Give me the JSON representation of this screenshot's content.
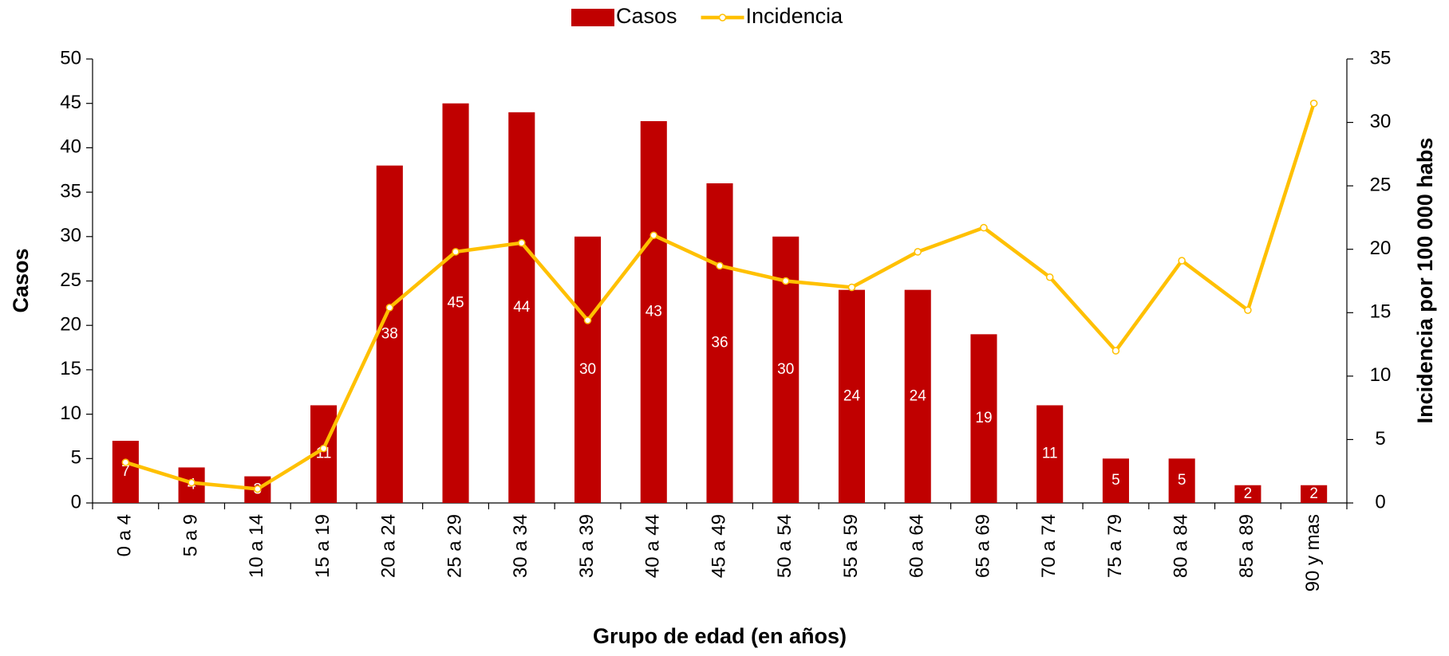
{
  "chart_data": {
    "type": "bar_line",
    "x_label": "Grupo de edad (en años)",
    "y_label": "Casos",
    "y2_label": "Incidencia por 100 000 habs",
    "categories": [
      "0 a 4",
      "5 a 9",
      "10 a 14",
      "15 a 19",
      "20 a 24",
      "25 a 29",
      "30 a 34",
      "35 a 39",
      "40 a 44",
      "45 a 49",
      "50 a 54",
      "55 a 59",
      "60 a 64",
      "65 a 69",
      "70 a 74",
      "75 a 79",
      "80 a 84",
      "85 a 89",
      "90 y mas"
    ],
    "series": [
      {
        "name": "Casos",
        "type": "bar",
        "color": "#c00000",
        "values": [
          7,
          4,
          3,
          11,
          38,
          45,
          44,
          30,
          43,
          36,
          30,
          24,
          24,
          19,
          11,
          5,
          5,
          2,
          2
        ]
      },
      {
        "name": "Incidencia",
        "type": "line",
        "axis": "y2",
        "color": "#ffc000",
        "values": [
          3.2,
          1.6,
          1.1,
          4.3,
          15.4,
          19.8,
          20.5,
          14.4,
          21.1,
          18.7,
          17.5,
          17.0,
          19.8,
          21.7,
          17.8,
          12.0,
          19.1,
          15.2,
          31.5
        ]
      }
    ],
    "ylim": [
      0,
      50
    ],
    "yticks": [
      0,
      5,
      10,
      15,
      20,
      25,
      30,
      35,
      40,
      45,
      50
    ],
    "y2lim": [
      0,
      35
    ],
    "y2ticks": [
      0,
      5,
      10,
      15,
      20,
      25,
      30,
      35
    ],
    "legend": "top"
  }
}
